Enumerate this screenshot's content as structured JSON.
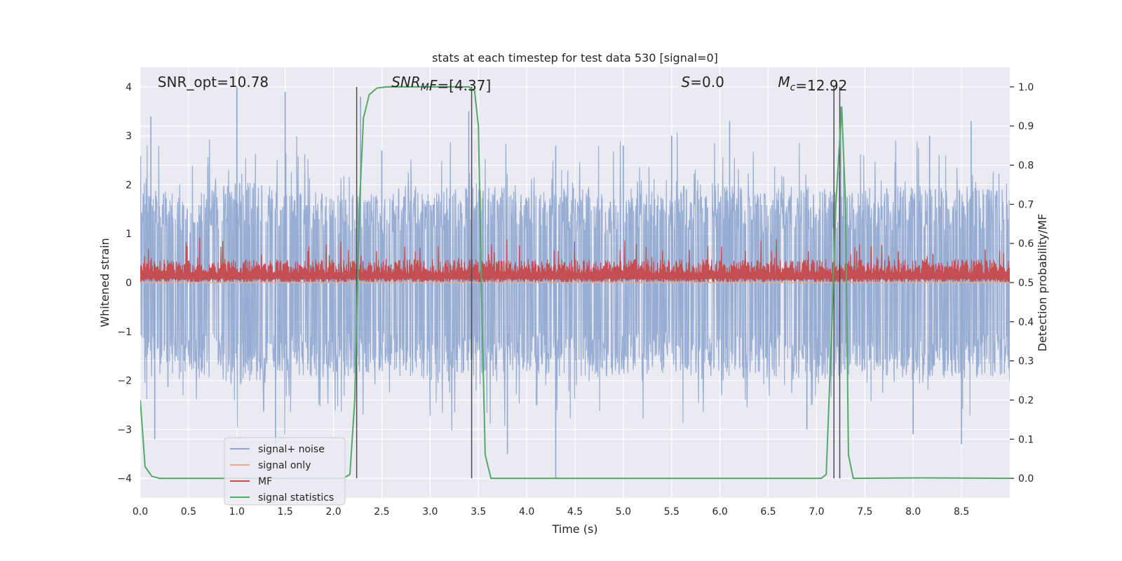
{
  "chart_data": {
    "type": "line",
    "title": "stats at each timestep for test data 530 [signal=0]",
    "xlabel": "Time (s)",
    "ylabel_left": "Whitened strain",
    "ylabel_right": "Detection probability/MF",
    "xlim": [
      0,
      9.0
    ],
    "ylim_left": [
      -4.4,
      4.4
    ],
    "ylim_right": [
      -0.05,
      1.05
    ],
    "xticks": [
      0.0,
      0.5,
      1.0,
      1.5,
      2.0,
      2.5,
      3.0,
      3.5,
      4.0,
      4.5,
      5.0,
      5.5,
      6.0,
      6.5,
      7.0,
      7.5,
      8.0,
      8.5
    ],
    "xtick_labels": [
      "0.0",
      "0.5",
      "1.0",
      "1.5",
      "2.0",
      "2.5",
      "3.0",
      "3.5",
      "4.0",
      "4.5",
      "5.0",
      "5.5",
      "6.0",
      "6.5",
      "7.0",
      "7.5",
      "8.0",
      "8.5"
    ],
    "yticks_left": [
      -4,
      -3,
      -2,
      -1,
      0,
      1,
      2,
      3,
      4
    ],
    "ytick_labels_left": [
      "−4",
      "−3",
      "−2",
      "−1",
      "0",
      "1",
      "2",
      "3",
      "4"
    ],
    "yticks_right": [
      0.0,
      0.1,
      0.2,
      0.3,
      0.4,
      0.5,
      0.6,
      0.7,
      0.8,
      0.9,
      1.0
    ],
    "ytick_labels_right": [
      "0.0",
      "0.1",
      "0.2",
      "0.3",
      "0.4",
      "0.5",
      "0.6",
      "0.7",
      "0.8",
      "0.9",
      "1.0"
    ],
    "grid": true,
    "legend_position": "lower-left",
    "annotations": [
      {
        "parts": [
          {
            "text": "SNR_opt=10.78"
          }
        ],
        "x": 0.18,
        "y": 4.0
      },
      {
        "parts": [
          {
            "text": "SNR",
            "italic": true
          },
          {
            "text": "M",
            "italic": true,
            "sub": true
          },
          {
            "text": "F",
            "italic": true
          },
          {
            "text": "=[4.37]"
          }
        ],
        "x": 2.6,
        "y": 4.0
      },
      {
        "parts": [
          {
            "text": "S",
            "italic": true
          },
          {
            "text": "=0.0"
          }
        ],
        "x": 5.6,
        "y": 4.0
      },
      {
        "parts": [
          {
            "text": "M",
            "italic": true
          },
          {
            "text": "c",
            "italic": true,
            "sub": true
          },
          {
            "text": "=12.92"
          }
        ],
        "x": 6.6,
        "y": 4.0
      }
    ],
    "vertical_lines_x": [
      2.24,
      3.43,
      7.18,
      7.24
    ],
    "vertical_lines_y_range": [
      -4.0,
      4.0
    ],
    "series": [
      {
        "name": "signal+ noise",
        "color": "#8fa6cf",
        "axis": "left",
        "envelope_upper": [
          [
            0.0,
            1.6
          ],
          [
            0.5,
            1.4
          ],
          [
            1.0,
            1.6
          ],
          [
            1.5,
            1.5
          ],
          [
            2.0,
            1.4
          ],
          [
            2.5,
            1.4
          ],
          [
            3.0,
            1.5
          ],
          [
            3.5,
            1.6
          ],
          [
            4.0,
            1.4
          ],
          [
            4.5,
            1.5
          ],
          [
            5.0,
            1.4
          ],
          [
            5.5,
            1.5
          ],
          [
            6.0,
            1.6
          ],
          [
            6.5,
            1.4
          ],
          [
            7.0,
            1.5
          ],
          [
            7.5,
            1.4
          ],
          [
            8.0,
            1.6
          ],
          [
            8.5,
            1.5
          ],
          [
            9.0,
            1.5
          ]
        ],
        "envelope_lower": [
          [
            0.0,
            -1.5
          ],
          [
            0.5,
            -1.4
          ],
          [
            1.0,
            -1.6
          ],
          [
            1.5,
            -1.5
          ],
          [
            2.0,
            -1.5
          ],
          [
            2.5,
            -1.4
          ],
          [
            3.0,
            -1.6
          ],
          [
            3.5,
            -1.5
          ],
          [
            4.0,
            -1.4
          ],
          [
            4.5,
            -1.5
          ],
          [
            5.0,
            -1.5
          ],
          [
            5.5,
            -1.4
          ],
          [
            6.0,
            -1.6
          ],
          [
            6.5,
            -1.5
          ],
          [
            7.0,
            -1.6
          ],
          [
            7.5,
            -1.4
          ],
          [
            8.0,
            -1.6
          ],
          [
            8.5,
            -1.5
          ],
          [
            9.0,
            -1.5
          ]
        ],
        "notable_peaks": [
          [
            0.11,
            3.4
          ],
          [
            0.7,
            2.4
          ],
          [
            1.0,
            4.0
          ],
          [
            1.5,
            3.9
          ],
          [
            2.28,
            3.8
          ],
          [
            2.5,
            2.7
          ],
          [
            3.4,
            3.5
          ],
          [
            4.3,
            2.8
          ],
          [
            5.0,
            2.8
          ],
          [
            5.5,
            3.0
          ],
          [
            6.1,
            3.3
          ],
          [
            7.25,
            3.6
          ],
          [
            8.17,
            3.0
          ],
          [
            8.6,
            3.3
          ],
          [
            0.15,
            -3.2
          ],
          [
            1.4,
            -3.3
          ],
          [
            3.8,
            -3.5
          ],
          [
            4.3,
            -4.0
          ],
          [
            6.9,
            -3.0
          ],
          [
            8.0,
            -3.1
          ],
          [
            8.5,
            -3.3
          ]
        ]
      },
      {
        "name": "signal only",
        "color": "#e8a98c",
        "axis": "left",
        "values": [
          [
            0.0,
            0.0
          ],
          [
            9.0,
            0.0
          ]
        ]
      },
      {
        "name": "MF",
        "color": "#c44e52",
        "axis": "right",
        "band": [
          0.5,
          0.56
        ],
        "peak": 0.62
      },
      {
        "name": "signal statistics",
        "color": "#55a868",
        "axis": "right",
        "values": [
          [
            0.0,
            0.2
          ],
          [
            0.05,
            0.03
          ],
          [
            0.12,
            0.005
          ],
          [
            0.2,
            0.0
          ],
          [
            2.1,
            0.0
          ],
          [
            2.17,
            0.01
          ],
          [
            2.22,
            0.2
          ],
          [
            2.27,
            0.7
          ],
          [
            2.31,
            0.92
          ],
          [
            2.37,
            0.98
          ],
          [
            2.45,
            0.997
          ],
          [
            2.55,
            1.0
          ],
          [
            3.4,
            1.0
          ],
          [
            3.46,
            0.99
          ],
          [
            3.5,
            0.9
          ],
          [
            3.53,
            0.5
          ],
          [
            3.57,
            0.06
          ],
          [
            3.63,
            0.0
          ],
          [
            7.05,
            0.0
          ],
          [
            7.1,
            0.01
          ],
          [
            7.16,
            0.4
          ],
          [
            7.2,
            0.7
          ],
          [
            7.26,
            0.95
          ],
          [
            7.3,
            0.7
          ],
          [
            7.33,
            0.06
          ],
          [
            7.38,
            0.0
          ],
          [
            8.1,
            0.001
          ],
          [
            9.0,
            0.0
          ]
        ]
      }
    ]
  }
}
